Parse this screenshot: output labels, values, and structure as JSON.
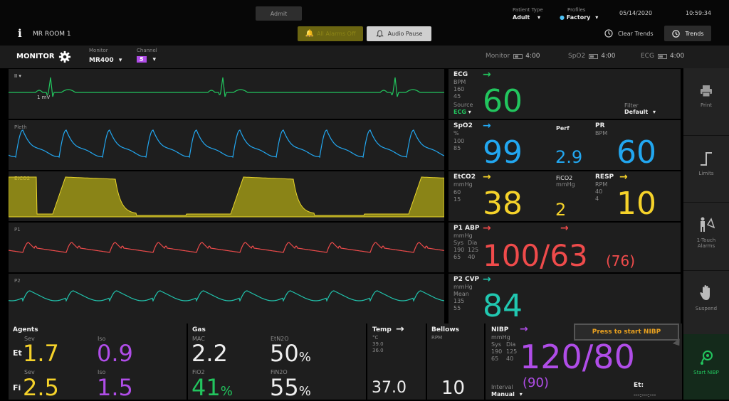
{
  "topbar": {
    "admit": "Admit",
    "room": "MR ROOM 1",
    "patient_type_label": "Patient Type",
    "patient_type_value": "Adult",
    "profiles_label": "Profiles",
    "profiles_value": "Factory",
    "date": "05/14/2020",
    "time": "10:59:34",
    "alarm_silence": "All Alarms Off",
    "audio_pause": "Audio Pause",
    "clear_trends": "Clear Trends",
    "trends": "Trends"
  },
  "monrow": {
    "monitor_title": "MONITOR",
    "monitor_label": "Monitor",
    "monitor_value": "MR400",
    "channel_label": "Channel",
    "channel_value": "5",
    "batt1_label": "Monitor",
    "batt1_time": "4:00",
    "batt2_label": "SpO2",
    "batt2_time": "4:00",
    "batt3_label": "ECG",
    "batt3_time": "4:00"
  },
  "waves": {
    "ecg_lead": "II",
    "ecg_scale": "1 mV",
    "pleth": "Pleth",
    "etco2": "EtCO2",
    "p1": "P1",
    "p2": "P2"
  },
  "ecg": {
    "title": "ECG",
    "unit": "BPM",
    "hi": "160",
    "lo": "45",
    "source_label": "Source",
    "source_value": "ECG",
    "value": "60",
    "filter_label": "Filter",
    "filter_value": "Default"
  },
  "spo2": {
    "title": "SpO2",
    "unit": "%",
    "hi": "100",
    "lo": "85",
    "value": "99",
    "perf_label": "Perf",
    "perf_value": "2.9",
    "pr_label": "PR",
    "pr_unit": "BPM",
    "pr_value": "60"
  },
  "co2": {
    "title": "EtCO2",
    "unit": "mmHg",
    "hi": "60",
    "lo": "15",
    "value": "38",
    "fico2_label": "FiCO2",
    "fico2_unit": "mmHg",
    "fico2_value": "2",
    "resp_label": "RESP",
    "resp_unit": "RPM",
    "resp_hi": "40",
    "resp_lo": "4",
    "resp_value": "10"
  },
  "p1": {
    "title": "P1 ABP",
    "unit": "mmHg",
    "col1": "Sys",
    "col2": "Dia",
    "sys_hi": "190",
    "dia_hi": "125",
    "sys_lo": "65",
    "dia_lo": "40",
    "value": "100/63",
    "mean": "(76)"
  },
  "p2": {
    "title": "P2 CVP",
    "unit": "mmHg",
    "mean_label": "Mean",
    "hi": "135",
    "lo": "55",
    "value": "84"
  },
  "agents": {
    "title": "Agents",
    "sev": "Sev",
    "iso": "Iso",
    "et": "Et",
    "fi": "Fi",
    "et_sev": "1.7",
    "et_iso": "0.9",
    "fi_sev": "2.5",
    "fi_iso": "1.5"
  },
  "gas": {
    "title": "Gas",
    "mac_label": "MAC",
    "mac": "2.2",
    "etn2o_label": "EtN2O",
    "etn2o": "50",
    "fio2_label": "FiO2",
    "fio2": "41",
    "fin2o_label": "FiN2O",
    "fin2o": "55",
    "pct": "%"
  },
  "temp": {
    "title": "Temp",
    "unit": "°C",
    "hi": "39.0",
    "lo": "36.0",
    "value": "37.0"
  },
  "bellows": {
    "title": "Bellows",
    "unit": "RPM",
    "value": "10"
  },
  "nibp": {
    "title": "NIBP",
    "unit": "mmHg",
    "col1": "Sys",
    "col2": "Dia",
    "sys_hi": "190",
    "dia_hi": "125",
    "sys_lo": "65",
    "dia_lo": "40",
    "value": "120/80",
    "mean": "(90)",
    "interval_label": "Interval",
    "interval_value": "Manual",
    "prompt": "Press to start NIBP",
    "et_label": "Et:",
    "et_value": "---:---:---"
  },
  "sidebar": {
    "print": "Print",
    "limits": "Limits",
    "one_touch": "1-Touch\nAlarms",
    "suspend": "Suspend",
    "start_nibp": "Start NIBP"
  },
  "colors": {
    "ecg": "#22c55e",
    "spo2": "#22a7f0",
    "co2": "#f5d22a",
    "abp": "#ef4b4b",
    "cvp": "#21c7b0",
    "agent_sev": "#f5d22a",
    "agent_iso": "#b04de8",
    "fio2": "#22c55e",
    "nibp": "#b04de8"
  }
}
